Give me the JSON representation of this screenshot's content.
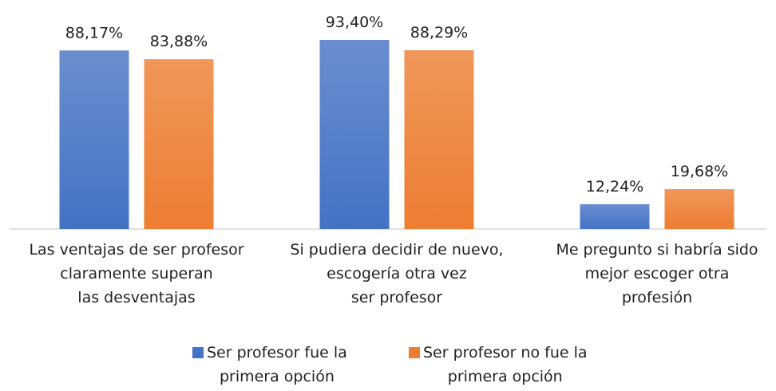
{
  "chart_data": {
    "type": "bar",
    "categories": [
      "Las ventajas de ser profesor\nclaramente superan\nlas desventajas",
      "Si pudiera decidir de nuevo,\nescogería otra vez\nser profesor",
      "Me pregunto si habría sido\nmejor escoger otra\nprofesión"
    ],
    "series": [
      {
        "name": "Ser profesor fue la\nprimera opción",
        "color": "#4472c4",
        "values": [
          88.17,
          93.4,
          12.24
        ],
        "value_labels": [
          "88,17%",
          "93,40%",
          "12,24%"
        ]
      },
      {
        "name": "Ser profesor no fue la\nprimera opción",
        "color": "#ed7d31",
        "values": [
          83.88,
          88.29,
          19.68
        ],
        "value_labels": [
          "83,88%",
          "88,29%",
          "19,68%"
        ]
      }
    ],
    "legend": "bottom"
  }
}
